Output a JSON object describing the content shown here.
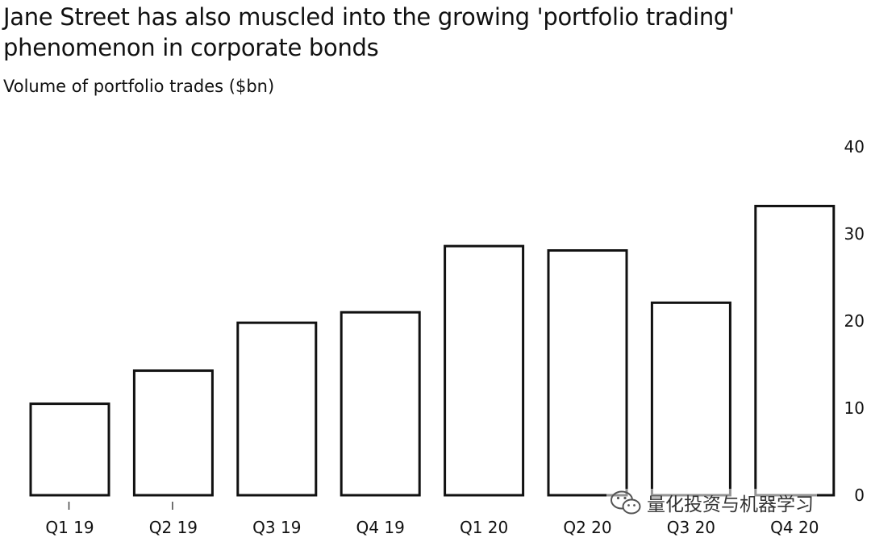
{
  "title": "Jane Street has also muscled into the growing 'portfolio trading' phenomenon in corporate bonds",
  "subtitle": "Volume of portfolio trades ($bn)",
  "watermark": {
    "text": "量化投资与机器学习",
    "icon": "wechat-icon"
  },
  "colors": {
    "bar_fill": "#ffffff",
    "bar_stroke": "#111111",
    "text": "#111111"
  },
  "chart_data": {
    "type": "bar",
    "title": "Jane Street has also muscled into the growing 'portfolio trading' phenomenon in corporate bonds",
    "subtitle": "Volume of portfolio trades ($bn)",
    "categories": [
      "Q1 19",
      "Q2 19",
      "Q3 19",
      "Q4 19",
      "Q1 20",
      "Q2 20",
      "Q3 20",
      "Q4 20"
    ],
    "values": [
      10.5,
      14.3,
      19.8,
      21.0,
      28.6,
      28.1,
      22.1,
      33.2
    ],
    "ylim": [
      0,
      40
    ],
    "yticks": [
      "0",
      "10",
      "20",
      "30",
      "40"
    ],
    "ytick_values": [
      0,
      10,
      20,
      30,
      40
    ],
    "yaxis_position": "right",
    "grid": false,
    "xlabel": "",
    "ylabel": ""
  }
}
